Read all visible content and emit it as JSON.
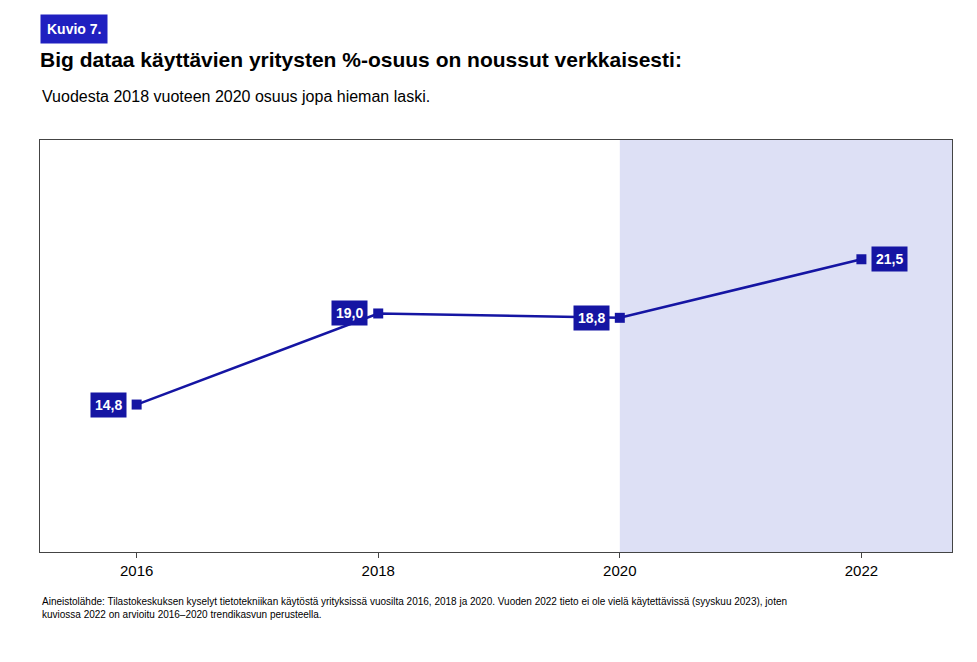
{
  "chart_data": {
    "type": "line",
    "title": "Big dataa käyttävien yritysten %-osuus on noussut verkkaisesti:",
    "subtitle": "Vuodesta 2018 vuoteen 2020 osuus jopa hieman laski.",
    "annotations": [
      {
        "text": "Kuvio 7.",
        "color": "#2020c0"
      },
      {
        "text": "Aineistolähde: Tilastokeskuksen kyselyt tietotekniikan käytöstä yrityksissä vuosilta 2016, 2018 ja 2020. Vuoden 2022 tieto ei ole vielä käytettävissä (syyskuu 2023), joten\nkuviossa 2022 on arvioitu 2016–2020 trendikasvun perusteella."
      }
    ],
    "x": [
      2016,
      2018,
      2020,
      2022
    ],
    "values": [
      14.8,
      19.0,
      18.8,
      21.5
    ],
    "value_labels": [
      "14,8",
      "19,0",
      "18,8",
      "21,5"
    ],
    "data_labels": true,
    "color": "#1515a3",
    "marker": "square",
    "shade_from": 2020,
    "shade_color": "#dde0f5",
    "xlim": [
      2015.2,
      2022.75
    ],
    "xticks": [
      2016,
      2018,
      2020,
      2022
    ],
    "ylim": [
      8,
      27
    ],
    "yticks": [],
    "tick_labels": "x",
    "grid": false
  }
}
